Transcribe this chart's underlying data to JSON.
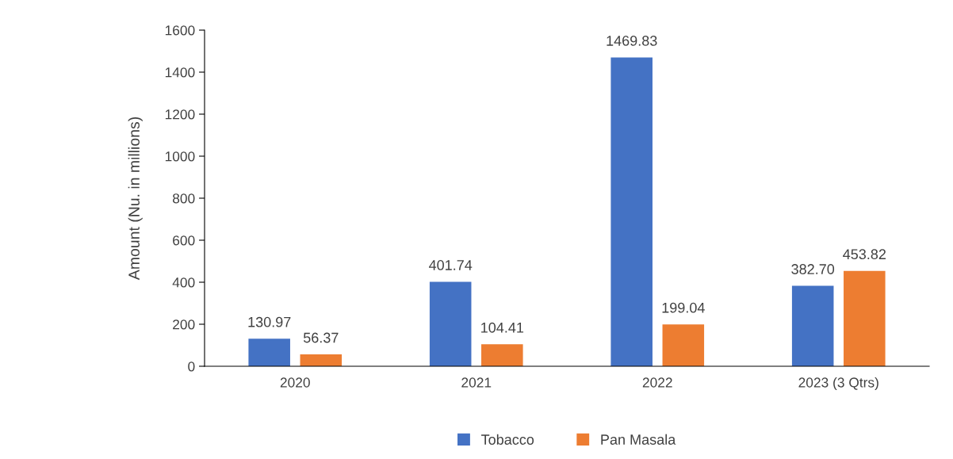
{
  "chart_data": {
    "type": "bar",
    "ylabel": "Amount (Nu. in millions)",
    "categories": [
      "2020",
      "2021",
      "2022",
      "2023 (3 Qtrs)"
    ],
    "series": [
      {
        "name": "Tobacco",
        "color": "#4472c4",
        "values": [
          130.97,
          401.74,
          1469.83,
          382.7
        ],
        "value_labels": [
          "130.97",
          "401.74",
          "1469.83",
          "382.70"
        ]
      },
      {
        "name": "Pan Masala",
        "color": "#ed7d31",
        "values": [
          56.37,
          104.41,
          199.04,
          453.82
        ],
        "value_labels": [
          "56.37",
          "104.41",
          "199.04",
          "453.82"
        ]
      }
    ],
    "ylim": [
      0,
      1600
    ],
    "yticks": [
      0,
      200,
      400,
      600,
      800,
      1000,
      1200,
      1400,
      1600
    ],
    "grid": false,
    "legend": "bottom"
  }
}
